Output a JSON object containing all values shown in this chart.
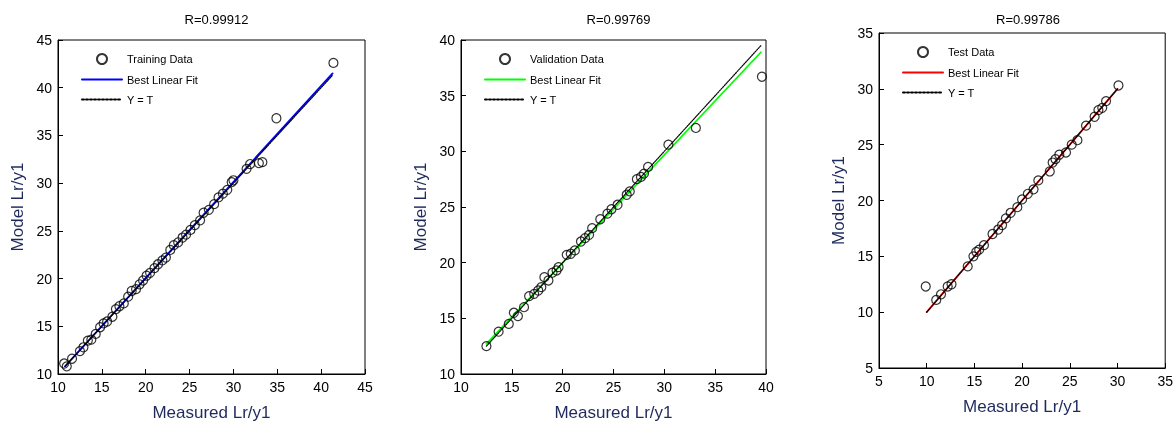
{
  "chart_data": [
    {
      "type": "scatter",
      "title": "R=0.99912",
      "xlabel": "Measured Lr/y1",
      "ylabel": "Model Lr/y1",
      "xlim": [
        10,
        45
      ],
      "xticks": [
        10,
        15,
        20,
        25,
        30,
        35,
        40,
        45
      ],
      "ylim": [
        10,
        45
      ],
      "yticks": [
        10,
        15,
        20,
        25,
        30,
        35,
        40,
        45
      ],
      "grid": false,
      "legend": "top left",
      "series": [
        {
          "name": "Training Data",
          "marker": "circle",
          "color": "#000000",
          "x": [
            10.7,
            11.0,
            11.6,
            12.5,
            12.9,
            13.4,
            13.8,
            14.3,
            14.8,
            15.2,
            15.6,
            16.2,
            16.6,
            17.0,
            17.5,
            18.0,
            18.4,
            18.9,
            19.3,
            19.7,
            20.1,
            20.5,
            21.0,
            21.4,
            21.9,
            22.3,
            22.8,
            23.2,
            23.7,
            24.2,
            24.6,
            25.1,
            25.6,
            26.2,
            26.6,
            27.2,
            27.8,
            28.3,
            28.8,
            29.3,
            29.8,
            30.0,
            31.5,
            31.9,
            32.9,
            33.3,
            34.9,
            41.4
          ],
          "values": [
            11.1,
            10.8,
            11.6,
            12.4,
            12.8,
            13.5,
            13.6,
            14.2,
            14.9,
            15.3,
            15.5,
            16.0,
            16.8,
            17.1,
            17.4,
            18.1,
            18.7,
            18.9,
            19.4,
            19.8,
            20.3,
            20.6,
            21.1,
            21.5,
            21.9,
            22.2,
            23.0,
            23.5,
            23.8,
            24.3,
            24.6,
            25.1,
            25.6,
            26.1,
            26.9,
            27.2,
            27.8,
            28.5,
            28.9,
            29.3,
            30.1,
            30.3,
            31.5,
            32.0,
            32.1,
            32.2,
            36.8,
            42.6
          ]
        },
        {
          "name": "Best Linear Fit",
          "type": "line",
          "line_style": "solid",
          "color": "#0000ff",
          "x": [
            10.8,
            41.3
          ],
          "values": [
            10.8,
            41.5
          ]
        },
        {
          "name": "Y = T",
          "type": "line",
          "line_style": "dotted",
          "color": "#000000",
          "x": [
            10.8,
            41.3
          ],
          "values": [
            10.8,
            41.3
          ]
        }
      ]
    },
    {
      "type": "scatter",
      "title": "R=0.99769",
      "xlabel": "Measured Lr/y1",
      "ylabel": "Model Lr/y1",
      "xlim": [
        10,
        40
      ],
      "xticks": [
        10,
        15,
        20,
        25,
        30,
        35,
        40
      ],
      "ylim": [
        10,
        40
      ],
      "yticks": [
        10,
        15,
        20,
        25,
        30,
        35,
        40
      ],
      "grid": false,
      "legend": "top left",
      "series": [
        {
          "name": "Validation Data",
          "marker": "circle",
          "color": "#000000",
          "x": [
            12.5,
            13.7,
            14.7,
            15.2,
            15.6,
            16.2,
            16.7,
            17.2,
            17.6,
            17.9,
            18.2,
            18.6,
            19.0,
            19.4,
            19.6,
            20.4,
            20.8,
            21.2,
            21.8,
            22.2,
            22.6,
            22.9,
            23.7,
            24.4,
            24.8,
            25.4,
            26.3,
            26.6,
            27.3,
            27.7,
            28.0,
            28.4,
            30.4,
            33.1,
            39.6
          ],
          "values": [
            12.5,
            13.8,
            14.5,
            15.5,
            15.2,
            16.0,
            17.0,
            17.2,
            17.5,
            17.8,
            18.7,
            18.4,
            19.1,
            19.3,
            19.6,
            20.7,
            20.8,
            21.1,
            21.9,
            22.2,
            22.5,
            23.1,
            23.9,
            24.4,
            24.8,
            25.2,
            26.1,
            26.4,
            27.5,
            27.7,
            28.0,
            28.6,
            30.6,
            32.1,
            36.7
          ]
        },
        {
          "name": "Best Linear Fit",
          "type": "line",
          "line_style": "solid",
          "color": "#00ff00",
          "x": [
            12.5,
            39.5
          ],
          "values": [
            12.7,
            38.9
          ]
        },
        {
          "name": "Y = T",
          "type": "line",
          "line_style": "dotted",
          "color": "#000000",
          "x": [
            12.5,
            39.5
          ],
          "values": [
            12.5,
            39.5
          ]
        }
      ]
    },
    {
      "type": "scatter",
      "title": "R=0.99786",
      "xlabel": "Measured Lr/y1",
      "ylabel": "Model Lr/y1",
      "xlim": [
        5,
        35
      ],
      "xticks": [
        5,
        10,
        15,
        20,
        25,
        30,
        35
      ],
      "ylim": [
        5,
        35
      ],
      "yticks": [
        5,
        10,
        15,
        20,
        25,
        30,
        35
      ],
      "grid": false,
      "legend": "top left",
      "series": [
        {
          "name": "Test Data",
          "marker": "circle",
          "color": "#000000",
          "x": [
            9.9,
            11.0,
            11.5,
            12.2,
            12.6,
            14.3,
            14.9,
            15.2,
            15.5,
            16.0,
            16.9,
            17.5,
            17.9,
            18.3,
            18.8,
            19.5,
            20.0,
            20.6,
            21.2,
            21.7,
            22.9,
            23.2,
            23.5,
            23.9,
            24.6,
            25.2,
            25.8,
            26.7,
            27.6,
            28.0,
            28.4,
            28.8,
            30.1
          ],
          "values": [
            12.3,
            11.1,
            11.6,
            12.3,
            12.5,
            14.1,
            15.0,
            15.4,
            15.6,
            16.0,
            17.0,
            17.4,
            17.8,
            18.4,
            18.9,
            19.4,
            20.1,
            20.6,
            21.0,
            21.8,
            22.6,
            23.4,
            23.7,
            24.1,
            24.3,
            25.0,
            25.4,
            26.7,
            27.5,
            28.1,
            28.3,
            28.9,
            30.3
          ]
        },
        {
          "name": "Best Linear Fit",
          "type": "line",
          "line_style": "solid",
          "color": "#ff0000",
          "x": [
            10.0,
            30.0
          ],
          "values": [
            10.0,
            30.0
          ]
        },
        {
          "name": "Y = T",
          "type": "line",
          "line_style": "dotted",
          "color": "#000000",
          "x": [
            10.0,
            30.0
          ],
          "values": [
            10.0,
            30.0
          ]
        }
      ]
    }
  ]
}
